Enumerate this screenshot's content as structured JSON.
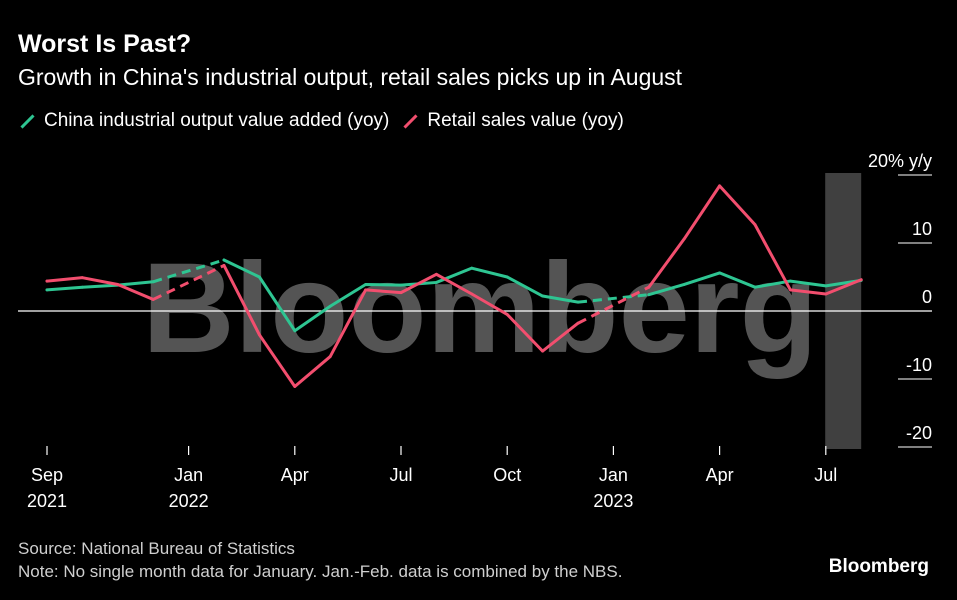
{
  "title": "Worst Is Past?",
  "subtitle": "Growth in China's industrial output, retail sales picks up in August",
  "source": "Source: National Bureau of Statistics",
  "note": "Note: No single month data for January. Jan.-Feb. data is combined by the NBS.",
  "brand": "Bloomberg",
  "watermark": "Bloomberg",
  "colors": {
    "industrial": "#2ec592",
    "retail": "#f24e6e",
    "background": "#000000",
    "band": "#555555"
  },
  "chart_data": {
    "type": "line",
    "y_unit_label": "20% y/y",
    "ylim": [
      -20,
      20
    ],
    "y_ticks": [
      {
        "value": 20,
        "label": "20% y/y"
      },
      {
        "value": 10,
        "label": "10"
      },
      {
        "value": 0,
        "label": "0"
      },
      {
        "value": -10,
        "label": "-10"
      },
      {
        "value": -20,
        "label": "-20"
      }
    ],
    "x_ticks": [
      {
        "month": "2021-09",
        "label": "Sep",
        "label2": "2021"
      },
      {
        "month": "2022-01",
        "label": "Jan",
        "label2": "2022"
      },
      {
        "month": "2022-04",
        "label": "Apr",
        "label2": ""
      },
      {
        "month": "2022-07",
        "label": "Jul",
        "label2": ""
      },
      {
        "month": "2022-10",
        "label": "Oct",
        "label2": ""
      },
      {
        "month": "2023-01",
        "label": "Jan",
        "label2": "2023"
      },
      {
        "month": "2023-04",
        "label": "Apr",
        "label2": ""
      },
      {
        "month": "2023-07",
        "label": "Jul",
        "label2": ""
      }
    ],
    "x": [
      "2021-09",
      "2021-10",
      "2021-11",
      "2021-12",
      "2022-01",
      "2022-02",
      "2022-03",
      "2022-04",
      "2022-05",
      "2022-06",
      "2022-07",
      "2022-08",
      "2022-09",
      "2022-10",
      "2022-11",
      "2022-12",
      "2023-01",
      "2023-02",
      "2023-03",
      "2023-04",
      "2023-05",
      "2023-06",
      "2023-07",
      "2023-08"
    ],
    "series": [
      {
        "name": "China industrial output value added (yoy)",
        "values": [
          3.1,
          3.5,
          3.8,
          4.3,
          null,
          7.5,
          5.0,
          -2.9,
          0.7,
          3.9,
          3.8,
          4.2,
          6.3,
          5.0,
          2.2,
          1.3,
          null,
          2.4,
          3.9,
          5.6,
          3.5,
          4.4,
          3.7,
          4.5
        ]
      },
      {
        "name": "Retail sales value (yoy)",
        "values": [
          4.4,
          4.9,
          3.9,
          1.7,
          null,
          6.7,
          -3.5,
          -11.1,
          -6.7,
          3.1,
          2.7,
          5.4,
          2.5,
          -0.5,
          -5.9,
          -1.8,
          null,
          3.5,
          10.6,
          18.4,
          12.7,
          3.1,
          2.5,
          4.6
        ]
      }
    ],
    "shaded_band": {
      "from": "2023-08",
      "to": "2023-08"
    },
    "grid": false,
    "legend": "top-left"
  }
}
